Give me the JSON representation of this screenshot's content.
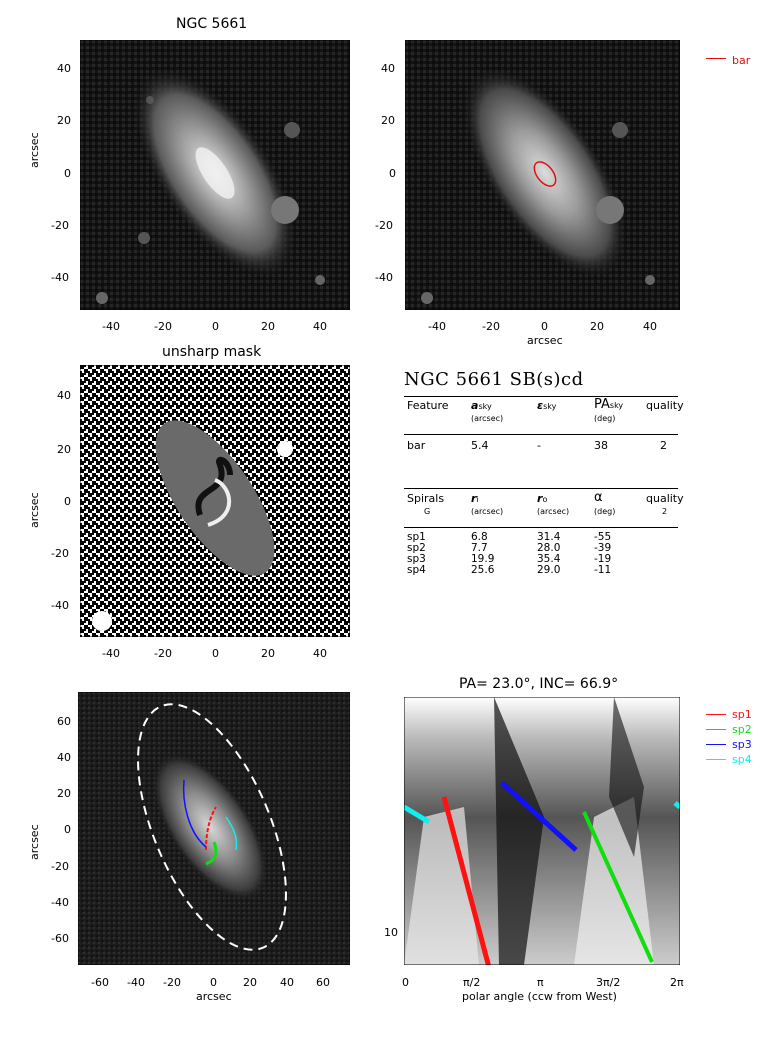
{
  "panels": {
    "top_left": {
      "title": "NGC 5661",
      "ylabel": "arcsec",
      "xticks": [
        "-40",
        "-20",
        "0",
        "20",
        "40"
      ],
      "yticks": [
        "40",
        "20",
        "0",
        "-20",
        "-40"
      ]
    },
    "top_right": {
      "xlabel": "arcsec",
      "xticks": [
        "-40",
        "-20",
        "0",
        "20",
        "40"
      ],
      "yticks": [
        "40",
        "20",
        "0",
        "-20",
        "-40"
      ],
      "legend": [
        {
          "label": "bar",
          "color": "#dd1111"
        }
      ]
    },
    "mid_left": {
      "title": "unsharp mask",
      "ylabel": "arcsec",
      "xticks": [
        "-40",
        "-20",
        "0",
        "20",
        "40"
      ],
      "yticks": [
        "40",
        "20",
        "0",
        "-20",
        "-40"
      ]
    },
    "bottom_left": {
      "xlabel": "arcsec",
      "ylabel": "arcsec",
      "xticks": [
        "-60",
        "-40",
        "-20",
        "0",
        "20",
        "40",
        "60"
      ],
      "yticks": [
        "60",
        "40",
        "20",
        "0",
        "-20",
        "-40",
        "-60"
      ]
    },
    "bottom_right": {
      "title": "PA=  23.0°, INC=  66.9°",
      "xlabel": "polar angle (ccw from West)",
      "xticks": [
        "0",
        "π/2",
        "π",
        "3π/2",
        "2π"
      ],
      "ytick": "10",
      "legend": [
        {
          "label": "sp1",
          "color": "#ff1111"
        },
        {
          "label": "sp2",
          "color": "#11dd11"
        },
        {
          "label": "sp3",
          "color": "#1111ff"
        },
        {
          "label": "sp4",
          "color": "#11eeee"
        }
      ]
    }
  },
  "table": {
    "title": "NGC 5661  SB(s)cd",
    "bar_header": {
      "feature": "Feature",
      "a": "a",
      "a_sub": "sky",
      "a_unit": "(arcsec)",
      "eps": "ε",
      "eps_sub": "sky",
      "pa": "PA",
      "pa_sub": "sky",
      "pa_unit": "(deg)",
      "quality": "quality"
    },
    "bar_row": {
      "feature": "bar",
      "a": "5.4",
      "eps": "-",
      "pa": "38",
      "quality": "2"
    },
    "spiral_header": {
      "spirals": "Spirals",
      "spirals_sub": "G",
      "ri": "r",
      "ri_sub": "i",
      "ri_unit": "(arcsec)",
      "ro": "r",
      "ro_sub": "o",
      "ro_unit": "(arcsec)",
      "alpha": "α",
      "alpha_unit": "(deg)",
      "quality": "quality",
      "quality_val": "2"
    },
    "spiral_rows": [
      {
        "name": "sp1",
        "ri": "6.8",
        "ro": "31.4",
        "alpha": "-55"
      },
      {
        "name": "sp2",
        "ri": "7.7",
        "ro": "28.0",
        "alpha": "-39"
      },
      {
        "name": "sp3",
        "ri": "19.9",
        "ro": "35.4",
        "alpha": "-19"
      },
      {
        "name": "sp4",
        "ri": "25.6",
        "ro": "29.0",
        "alpha": "-11"
      }
    ]
  },
  "colors": {
    "bar": "#dd1111",
    "sp1": "#ff1111",
    "sp2": "#11dd11",
    "sp3": "#1111ff",
    "sp4": "#11eeee"
  }
}
